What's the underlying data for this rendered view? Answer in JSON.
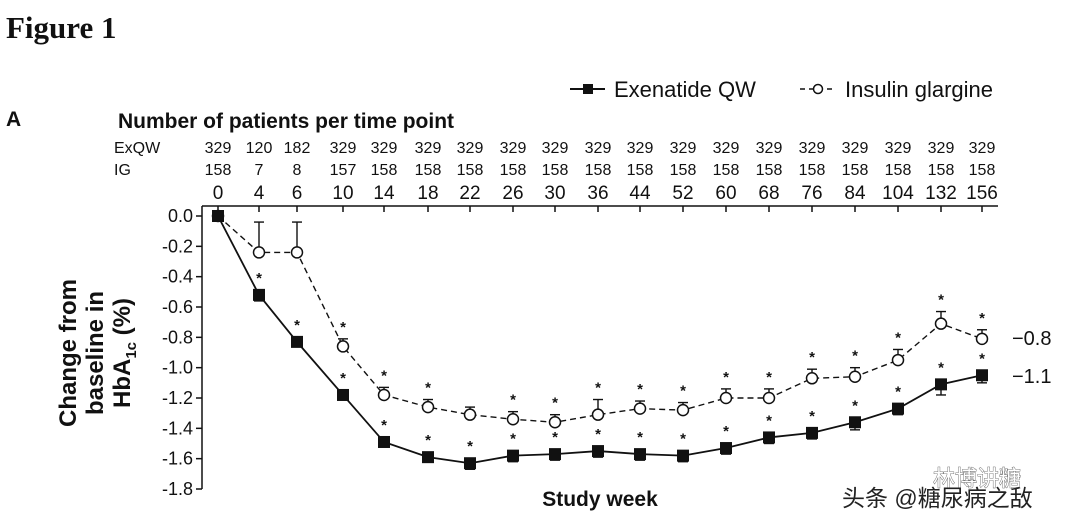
{
  "figure_title": "Figure 1",
  "panel_label": "A",
  "patients": {
    "title": "Number of patients per time point",
    "rows": [
      {
        "label": "ExQW",
        "values": [
          "329",
          "120",
          "182",
          "329",
          "329",
          "329",
          "329",
          "329",
          "329",
          "329",
          "329",
          "329",
          "329",
          "329",
          "329",
          "329",
          "329",
          "329",
          "329"
        ]
      },
      {
        "label": "IG",
        "values": [
          "158",
          "7",
          "8",
          "157",
          "158",
          "158",
          "158",
          "158",
          "158",
          "158",
          "158",
          "158",
          "158",
          "158",
          "158",
          "158",
          "158",
          "158",
          "158"
        ]
      }
    ]
  },
  "chart_data": {
    "type": "line",
    "title": "",
    "xlabel": "Study week",
    "ylabel_lines": [
      "Change from",
      "baseline in",
      "HbA1c (%)"
    ],
    "ylabel_parts": {
      "prefix": "HbA",
      "subscript": "1c",
      "suffix": " (%)"
    },
    "categories": [
      "0",
      "4",
      "6",
      "10",
      "14",
      "18",
      "22",
      "26",
      "30",
      "36",
      "44",
      "52",
      "60",
      "68",
      "76",
      "84",
      "104",
      "132",
      "156"
    ],
    "ylim": [
      -1.8,
      0.0
    ],
    "yticks": [
      0.0,
      -0.2,
      -0.4,
      -0.6,
      -0.8,
      -1.0,
      -1.2,
      -1.4,
      -1.6,
      -1.8
    ],
    "ytick_labels": [
      "0.0",
      "-0.2",
      "-0.4",
      "-0.6",
      "-0.8",
      "-1.0",
      "-1.2",
      "-1.4",
      "-1.6",
      "-1.8"
    ],
    "series": [
      {
        "name": "Exenatide QW",
        "style": "solid-filled-square",
        "values": [
          0,
          -0.52,
          -0.83,
          -1.18,
          -1.49,
          -1.59,
          -1.63,
          -1.58,
          -1.57,
          -1.55,
          -1.57,
          -1.58,
          -1.53,
          -1.46,
          -1.43,
          -1.36,
          -1.27,
          -1.11,
          -1.05
        ],
        "errors": [
          0,
          0.04,
          0.03,
          0.03,
          0.03,
          0.03,
          0.04,
          0.04,
          0.04,
          0.04,
          0.04,
          0.04,
          0.04,
          0.04,
          0.04,
          0.05,
          0.04,
          0.07,
          0.05
        ],
        "stars": [
          false,
          true,
          true,
          true,
          true,
          true,
          true,
          true,
          true,
          true,
          true,
          true,
          true,
          true,
          true,
          true,
          true,
          true,
          true
        ],
        "end_label": "−1.1"
      },
      {
        "name": "Insulin glargine",
        "style": "dashed-open-circle",
        "values": [
          0,
          -0.24,
          -0.24,
          -0.86,
          -1.18,
          -1.26,
          -1.31,
          -1.34,
          -1.36,
          -1.31,
          -1.27,
          -1.28,
          -1.2,
          -1.2,
          -1.07,
          -1.06,
          -0.95,
          -0.71,
          -0.81
        ],
        "errors": [
          0,
          0.2,
          0.2,
          0.05,
          0.05,
          0.05,
          0.05,
          0.05,
          0.05,
          0.1,
          0.05,
          0.05,
          0.06,
          0.06,
          0.06,
          0.06,
          0.07,
          0.08,
          0.06
        ],
        "stars": [
          false,
          false,
          false,
          true,
          true,
          true,
          false,
          true,
          true,
          true,
          true,
          true,
          true,
          true,
          true,
          true,
          true,
          true,
          true
        ],
        "end_label": "−0.8"
      }
    ],
    "star_symbol": "*",
    "legend_position": "top-right"
  },
  "watermarks": {
    "line1": "林博讲糖",
    "line2": "头条 @糖尿病之敌"
  },
  "colors": {
    "ink": "#111111",
    "background": "#ffffff"
  }
}
